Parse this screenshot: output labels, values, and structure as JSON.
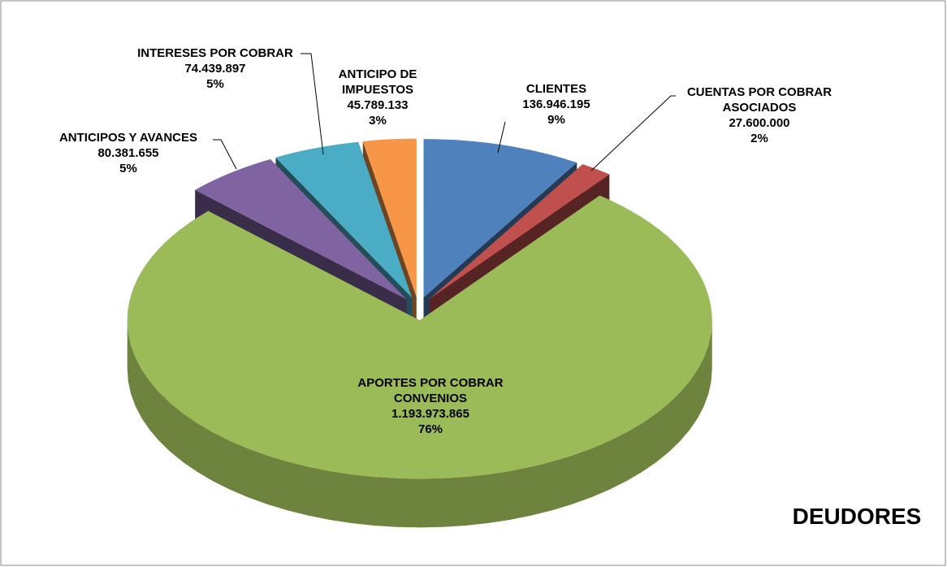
{
  "chart_data": {
    "type": "pie3d",
    "title": "DEUDORES",
    "categories": [
      "CLIENTES",
      "CUENTAS POR COBRAR ASOCIADOS",
      "APORTES POR COBRAR CONVENIOS",
      "ANTICIPOS Y AVANCES",
      "INTERESES POR COBRAR",
      "ANTICIPO DE IMPUESTOS"
    ],
    "values": [
      136946195,
      27600000,
      1193973865,
      80381655,
      74439897,
      45789133
    ],
    "value_labels": [
      "136.946.195",
      "27.600.000",
      "1.193.973.865",
      "80.381.655",
      "74.439.897",
      "45.789.133"
    ],
    "percentages": [
      9,
      2,
      76,
      5,
      5,
      3
    ],
    "percentage_labels": [
      "9%",
      "2%",
      "76%",
      "5%",
      "5%",
      "3%"
    ],
    "colors": [
      "#4f81bd",
      "#c0504d",
      "#9bbb59",
      "#8064a2",
      "#4bacc6",
      "#f79646"
    ]
  }
}
